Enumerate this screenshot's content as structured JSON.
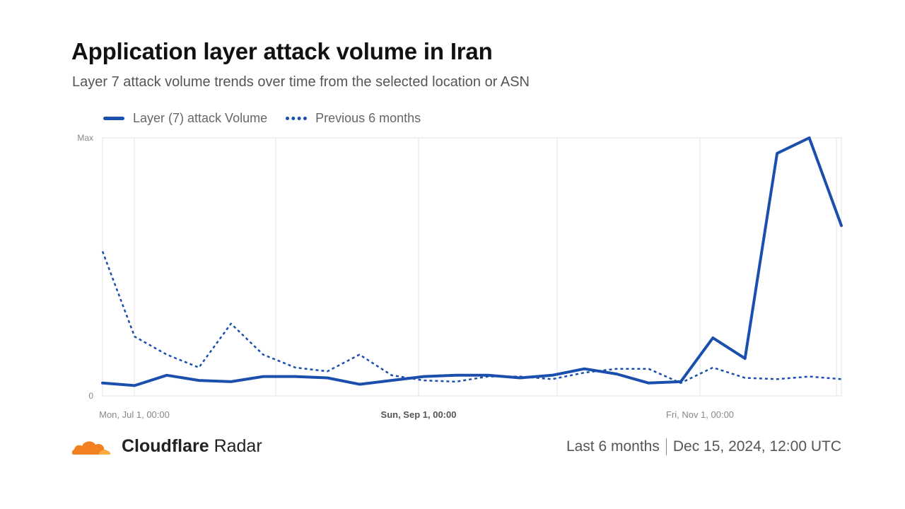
{
  "header": {
    "title": "Application layer attack volume in Iran",
    "subtitle": "Layer 7 attack volume trends over time from the selected location or ASN"
  },
  "legend": {
    "current": "Layer (7) attack Volume",
    "previous": "Previous 6 months"
  },
  "footer": {
    "brand_bold": "Cloudflare",
    "brand_light": " Radar",
    "period": "Last 6 months",
    "timestamp": "Dec 15, 2024, 12:00 UTC"
  },
  "colors": {
    "series": "#1B4FAE",
    "grid": "#e3e3e3",
    "axis_text": "#888888",
    "logo_orange": "#F38020"
  },
  "chart_data": {
    "type": "line",
    "ylim": [
      0,
      1
    ],
    "y_tick_labels": [
      "0",
      "Max"
    ],
    "x_tick_labels": [
      {
        "label": "Mon, Jul 1, 00:00",
        "bold": false
      },
      {
        "label": "Sun, Sep 1, 00:00",
        "bold": true
      },
      {
        "label": "Fri, Nov 1, 00:00",
        "bold": false
      }
    ],
    "series": [
      {
        "name": "Layer (7) attack Volume",
        "style": "solid",
        "values": [
          0.05,
          0.04,
          0.08,
          0.06,
          0.055,
          0.075,
          0.075,
          0.07,
          0.045,
          0.06,
          0.075,
          0.08,
          0.08,
          0.07,
          0.08,
          0.105,
          0.085,
          0.05,
          0.055,
          0.225,
          0.145,
          0.94,
          1.0,
          0.66
        ]
      },
      {
        "name": "Previous 6 months",
        "style": "dotted",
        "values": [
          0.56,
          0.23,
          0.16,
          0.11,
          0.28,
          0.16,
          0.11,
          0.095,
          0.16,
          0.08,
          0.06,
          0.055,
          0.075,
          0.075,
          0.065,
          0.09,
          0.105,
          0.105,
          0.05,
          0.11,
          0.07,
          0.065,
          0.075,
          0.065
        ]
      }
    ]
  }
}
